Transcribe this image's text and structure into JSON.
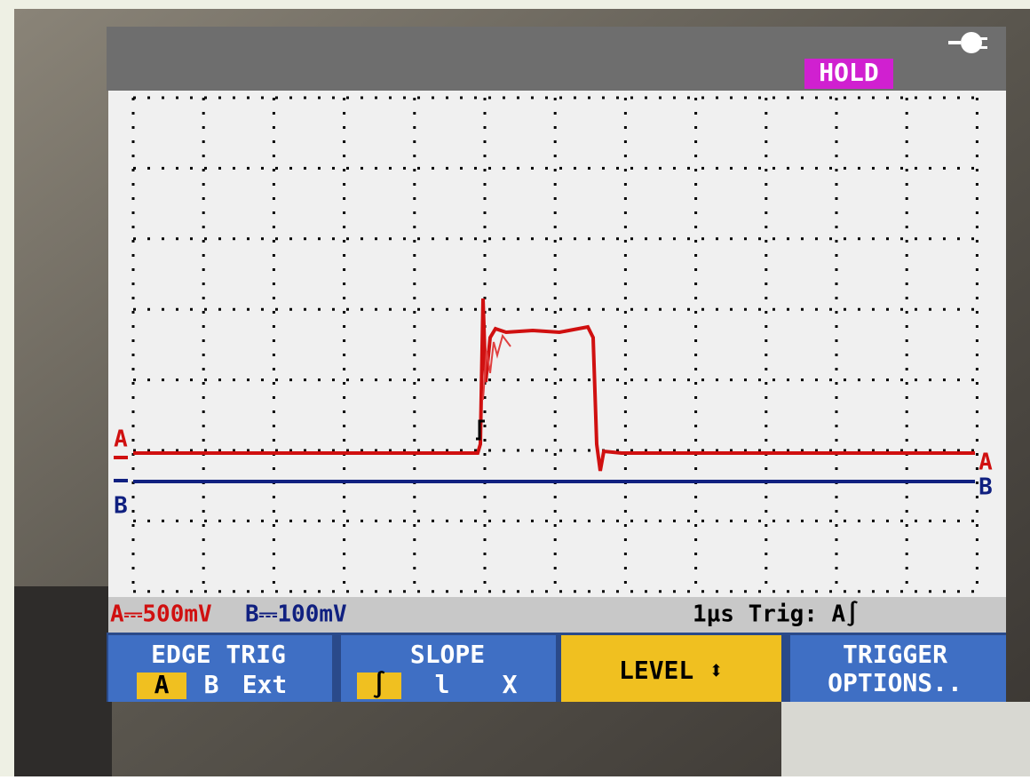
{
  "header": {
    "hold": "HOLD"
  },
  "screen": {
    "markers": {
      "a_left": "A",
      "b_left": "B",
      "a_right": "A",
      "b_right": "B"
    }
  },
  "status": {
    "channel_a": "A⎓500mV",
    "channel_b": "B⎓100mV",
    "timebase_trigger": "1µs Trig: A∫"
  },
  "menu": [
    {
      "label": "EDGE TRIG",
      "options": [
        "A",
        "B",
        "Ext"
      ]
    },
    {
      "label": "SLOPE",
      "options": [
        "∫",
        "l",
        "X"
      ]
    },
    {
      "label": "LEVEL ⬍"
    },
    {
      "lines": [
        "TRIGGER",
        "OPTIONS.."
      ]
    }
  ]
}
